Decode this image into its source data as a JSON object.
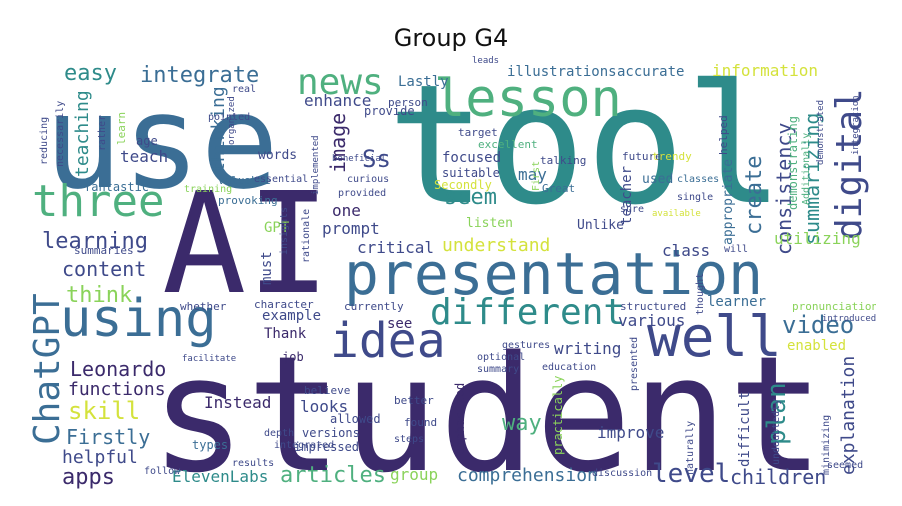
{
  "title": "Group G4",
  "palette": {
    "dark_purple": "#3b2a6b",
    "indigo": "#3f4a8a",
    "blue": "#3b6e95",
    "teal": "#2e8b8a",
    "green": "#4fb07f",
    "light_green": "#8ad35a",
    "yellow": "#d4e23c"
  },
  "words": {
    "use": "use",
    "tool": "tool",
    "student": "student",
    "AI": "AI",
    "presentation": "presentation",
    "lesson": "lesson",
    "using": "using",
    "idea": "idea",
    "well": "well",
    "three": "three",
    "ChatGPT": "ChatGPT",
    "digital": "digital",
    "different": "different",
    "news": "news",
    "integrate": "integrate",
    "easy": "easy",
    "learning": "learning",
    "content": "content",
    "think": "think",
    "skill": "skill",
    "Leonardo": "Leonardo",
    "functions": "functions",
    "Firstly": "Firstly",
    "helpful": "helpful",
    "apps": "apps",
    "ElevenLabs": "ElevenLabs",
    "articles": "articles",
    "group": "group",
    "comprehension": "comprehension",
    "level": "level",
    "children": "children",
    "video": "video",
    "plan": "plan",
    "explanation": "explanation",
    "create": "create",
    "consistency": "consistency",
    "summarizing": "summarizing",
    "information": "information",
    "accurate": "accurate",
    "illustrations": "illustrations",
    "Lastly": "Lastly",
    "enhance": "enhance",
    "image": "image",
    "Ss": "Ss",
    "thinking": "thinking",
    "teach": "teach",
    "teaching": "teaching",
    "seem": "seem",
    "may": "may",
    "understand": "understand",
    "critical": "critical",
    "prompt": "prompt",
    "GPT": "GPT",
    "must": "must",
    "class": "class",
    "learner": "learner",
    "various": "various",
    "writing": "writing",
    "improve": "improve",
    "way": "way",
    "looks": "looks",
    "Instead": "Instead",
    "example": "example",
    "Thank": "Thank",
    "see": "see",
    "one": "one",
    "focused": "focused",
    "suitable": "suitable",
    "Secondly": "Secondly",
    "listen": "listen",
    "teacher": "teacher",
    "used": "used",
    "appropriate": "appropriate",
    "demonstrating": "demonstrating",
    "utilizing": "utilizing",
    "Unlike": "Unlike",
    "words": "words",
    "fantastic": "fantastic",
    "valuable": "valuable",
    "provoking": "provoking",
    "types": "types",
    "versions": "versions",
    "impressed": "impressed",
    "allowed": "allowed",
    "emphasized": "emphasized",
    "practically": "practically",
    "difficult": "difficult",
    "enabled": "enabled",
    "pronunciation": "pronunciation",
    "structured": "structured",
    "Additionally": "Additionally",
    "excellent": "excellent",
    "target": "target",
    "future": "future",
    "helped": "helped",
    "talking": "talking",
    "Great": "Great",
    "First": "First",
    "classes": "classes",
    "trendy": "trendy",
    "sure": "sure",
    "single": "single",
    "provide": "provide",
    "person": "person",
    "pointed": "pointed",
    "real": "real",
    "learn": "learn",
    "age": "age",
    "reducing": "reducing",
    "necessarily": "necessarily",
    "rather": "rather",
    "essential": "essential",
    "training": "training",
    "insights": "insights",
    "rationale": "rationale",
    "summaries": "summaries",
    "whether": "whether",
    "character": "character",
    "currently": "currently",
    "job": "job",
    "believe": "believe",
    "integrated": "integrated",
    "depth": "depth",
    "results": "results",
    "follow": "follow",
    "steps": "steps",
    "found": "found",
    "better": "better",
    "discussion": "discussion",
    "naturally": "naturally",
    "undoubtedly": "undoubtedly",
    "minimizing": "minimizing",
    "seemed": "seemed",
    "optional": "optional",
    "summary": "summary",
    "gestures": "gestures",
    "education": "education",
    "presented": "presented",
    "thought": "thought",
    "will": "will",
    "integration": "integration",
    "curious": "curious",
    "provided": "provided",
    "implemented": "implemented",
    "beneficial": "beneficial",
    "organized": "organized",
    "leads": "leads",
    "available": "available",
    "demonstrated": "demonstrated",
    "introduced": "introduced",
    "facilitate": "facilitate"
  }
}
